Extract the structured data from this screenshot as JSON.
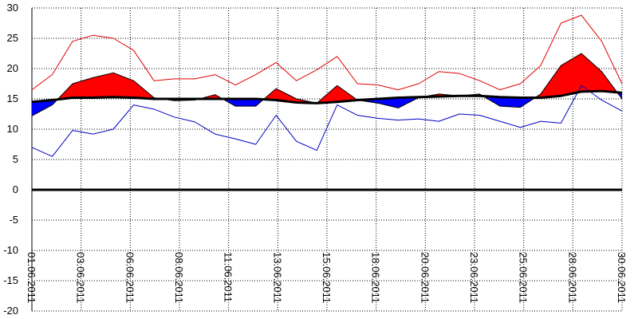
{
  "chart_data": {
    "type": "line",
    "x": [
      1,
      2,
      3,
      4,
      5,
      6,
      7,
      8,
      9,
      10,
      11,
      12,
      13,
      14,
      15,
      16,
      17,
      18,
      19,
      20,
      21,
      22,
      23,
      24,
      25,
      26,
      27,
      28,
      29,
      30
    ],
    "xlim": [
      1,
      30
    ],
    "xticks": [
      {
        "value": 1,
        "label": "01.06.2011"
      },
      {
        "value": 3.417,
        "label": "03.06.2011"
      },
      {
        "value": 5.833,
        "label": "06.06.2011"
      },
      {
        "value": 8.25,
        "label": "08.06.2011"
      },
      {
        "value": 10.667,
        "label": "11.06.2011"
      },
      {
        "value": 13.083,
        "label": "13.06.2011"
      },
      {
        "value": 15.5,
        "label": "15.06.2011"
      },
      {
        "value": 17.917,
        "label": "18.06.2011"
      },
      {
        "value": 20.333,
        "label": "20.06.2011"
      },
      {
        "value": 22.75,
        "label": "23.06.2011"
      },
      {
        "value": 25.167,
        "label": "25.06.2011"
      },
      {
        "value": 27.583,
        "label": "28.06.2011"
      },
      {
        "value": 30,
        "label": "30.06.2011"
      }
    ],
    "ylim": [
      -20,
      30
    ],
    "yticks": [
      -20,
      -15,
      -10,
      -5,
      0,
      5,
      10,
      15,
      20,
      25,
      30
    ],
    "grid": true,
    "series": [
      {
        "color": "#e00000",
        "width": 1,
        "values": [
          16.5,
          19,
          24.5,
          25.5,
          25,
          23,
          18,
          18.3,
          18.3,
          19,
          17.3,
          19,
          21,
          18,
          19.8,
          22,
          17.5,
          17.3,
          16.5,
          17.5,
          19.5,
          19.2,
          18,
          16.5,
          17.5,
          20.5,
          27.5,
          28.8,
          24.5,
          17.5
        ]
      },
      {
        "color": "#0000c0",
        "width": 1,
        "values": [
          7,
          5.5,
          9.8,
          9.2,
          10,
          14,
          13.3,
          12,
          11.2,
          9.2,
          8.4,
          7.5,
          12.3,
          8,
          6.5,
          14,
          12.3,
          11.8,
          11.5,
          11.7,
          11.3,
          12.5,
          12.3,
          11.3,
          10.3,
          11.3,
          11,
          17.2,
          14.8,
          13
        ]
      },
      {
        "color": "#000000",
        "width": 3,
        "values": [
          14.5,
          14.8,
          15.2,
          15.2,
          15.3,
          15.2,
          15,
          15,
          15,
          15,
          15,
          15,
          14.8,
          14.4,
          14.3,
          14.5,
          14.8,
          15,
          15.2,
          15.3,
          15.4,
          15.5,
          15.5,
          15.3,
          15.2,
          15.2,
          15.5,
          16.2,
          16.3,
          16
        ]
      },
      {
        "color": "#000000",
        "width": 1,
        "above_color": "#ff0000",
        "below_color": "#0000ff",
        "fill_against": 2,
        "values": [
          12.2,
          14,
          17.5,
          18.5,
          19.3,
          18,
          15.2,
          14.7,
          14.8,
          15.7,
          13.8,
          13.8,
          16.7,
          15,
          14.3,
          17.2,
          14.8,
          14.3,
          13.5,
          15.2,
          15.8,
          15.5,
          15.8,
          13.8,
          13.6,
          15.8,
          20.5,
          22.5,
          19.5,
          15
        ]
      }
    ]
  }
}
